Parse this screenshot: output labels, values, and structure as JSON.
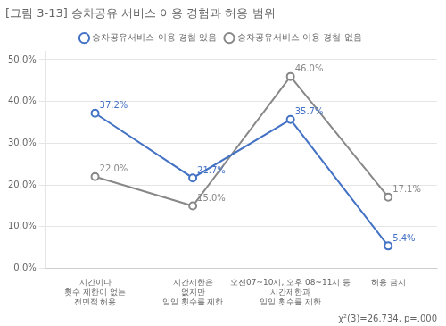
{
  "chart_data": {
    "type": "line",
    "title": "[그림 3-13] 승차공유 서비스 이용 경험과 허용 범위",
    "categories": [
      "시간이나\n횟수 제한이 없는\n전면적 허용",
      "시간제한은\n없지만\n일일 횟수를 제한",
      "오전07~10시, 오후 08~11시 등\n시간제한과\n일일 횟수를 제한",
      "허용 금지"
    ],
    "series": [
      {
        "name": "승차공유서비스 이용 경험 있음",
        "color": "#4472C4",
        "marker": "circle",
        "values": [
          37.2,
          21.7,
          35.7,
          5.4
        ],
        "value_labels": [
          "37.2%",
          "21.7%",
          "35.7%",
          "5.4%"
        ]
      },
      {
        "name": "승차공유서비스 이용 경험 없음",
        "color": "#888888",
        "marker": "circle",
        "values": [
          22.0,
          15.0,
          46.0,
          17.1
        ],
        "value_labels": [
          "22.0%",
          "15.0%",
          "46.0%",
          "17.1%"
        ]
      }
    ],
    "ylim": [
      0,
      52
    ],
    "yticks": [
      {
        "value": 0,
        "label": "0.0%"
      },
      {
        "value": 10,
        "label": "10.0%"
      },
      {
        "value": 20,
        "label": "20.0%"
      },
      {
        "value": 30,
        "label": "30.0%"
      },
      {
        "value": 40,
        "label": "40.0%"
      },
      {
        "value": 50,
        "label": "50.0%"
      }
    ],
    "grid": true,
    "legend": "top",
    "data_labels": true,
    "annotation": "χ²(3)=26.734, p=.000"
  }
}
